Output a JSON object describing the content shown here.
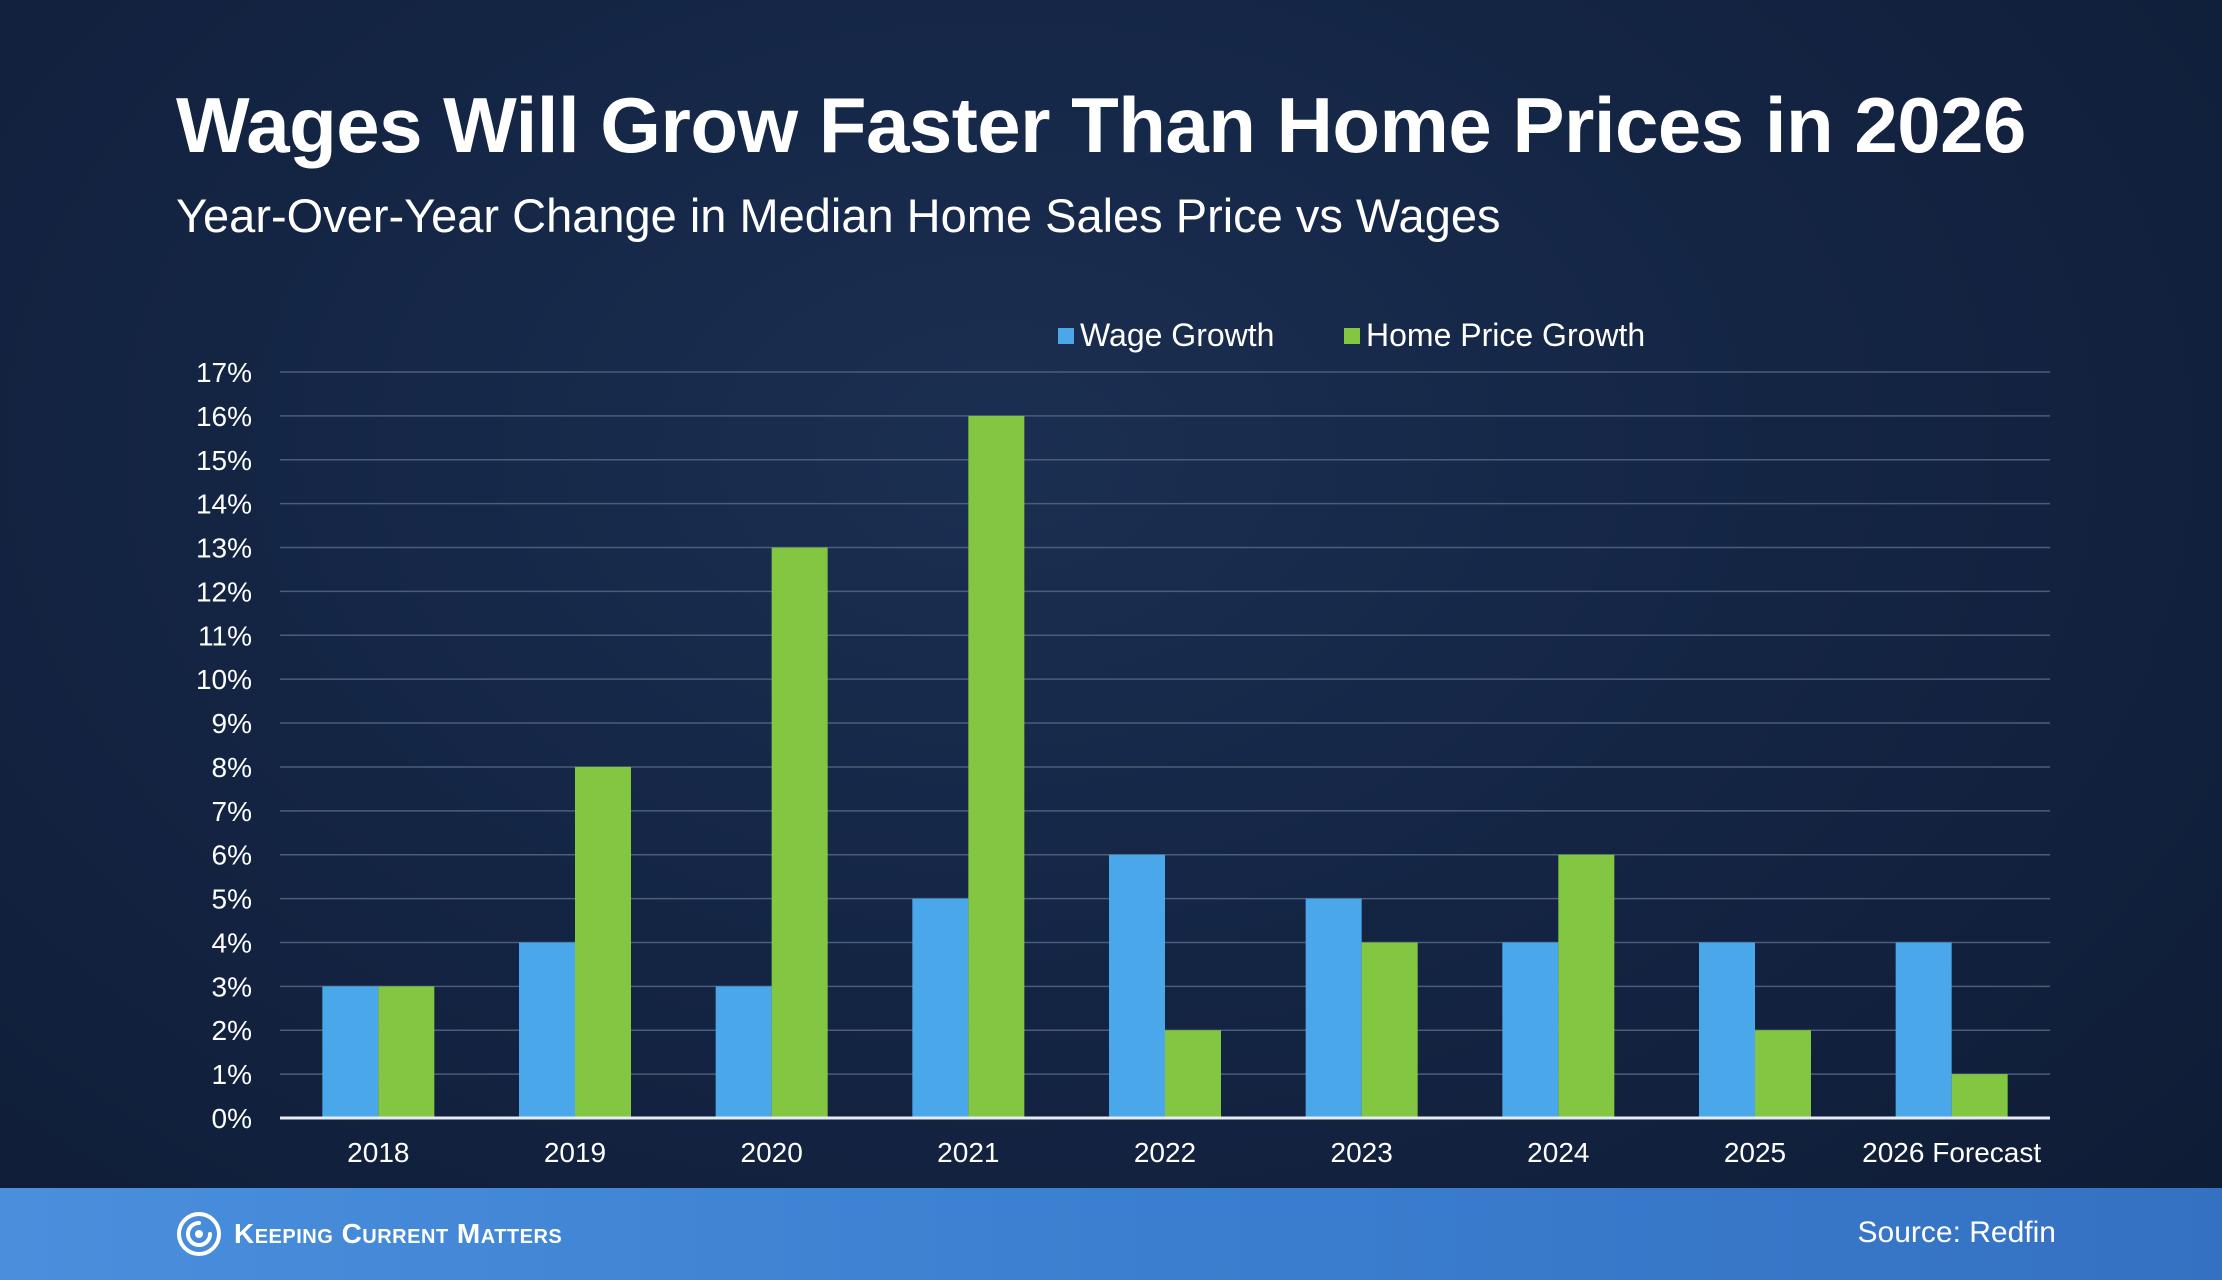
{
  "header": {
    "title": "Wages Will Grow Faster Than Home Prices in 2026",
    "subtitle": "Year-Over-Year Change in Median Home Sales Price vs Wages"
  },
  "footer": {
    "brand": "Keeping Current Matters",
    "source": "Source: Redfin"
  },
  "colors": {
    "wage": "#4aa8ea",
    "home": "#83c641",
    "grid": "#4a5d7a",
    "axis": "#e6ecf3"
  },
  "chart_data": {
    "type": "bar",
    "title": "Wages Will Grow Faster Than Home Prices in 2026",
    "subtitle": "Year-Over-Year Change in Median Home Sales Price vs Wages",
    "categories": [
      "2018",
      "2019",
      "2020",
      "2021",
      "2022",
      "2023",
      "2024",
      "2025",
      "2026 Forecast"
    ],
    "series": [
      {
        "name": "Wage Growth",
        "values": [
          3,
          4,
          3,
          5,
          6,
          5,
          4,
          4,
          4
        ]
      },
      {
        "name": "Home Price Growth",
        "values": [
          3,
          8,
          13,
          16,
          2,
          4,
          6,
          2,
          1
        ]
      }
    ],
    "ylim": [
      0,
      17
    ],
    "ytick_step": 1,
    "ytick_format": "percent",
    "grid": true,
    "legend_position": "top-center"
  }
}
